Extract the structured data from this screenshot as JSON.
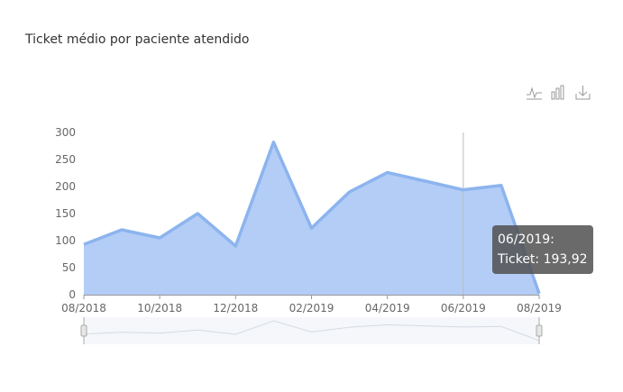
{
  "title": "Ticket médio por paciente atendido",
  "toolbox": {
    "icons": [
      "line-chart-icon",
      "bar-chart-icon",
      "download-icon"
    ]
  },
  "colors": {
    "area": "#b3cdf7",
    "line": "#8cb4ee",
    "axis": "#999999",
    "grid_text": "#666666"
  },
  "tooltip": {
    "label": "06/2019:",
    "value_line": "Ticket: 193,92"
  },
  "chart_data": {
    "type": "area",
    "title": "Ticket médio por paciente atendido",
    "x": [
      "08/2018",
      "09/2018",
      "10/2018",
      "11/2018",
      "12/2018",
      "01/2019",
      "02/2019",
      "03/2019",
      "04/2019",
      "05/2019",
      "06/2019",
      "07/2019",
      "08/2019"
    ],
    "x_tick_labels": [
      "08/2018",
      "10/2018",
      "12/2018",
      "02/2019",
      "04/2019",
      "06/2019",
      "08/2019"
    ],
    "series": [
      {
        "values": [
          93,
          120,
          105,
          150,
          90,
          282,
          123,
          190,
          226,
          210,
          193.92,
          202,
          2
        ]
      }
    ],
    "y_ticks": [
      0,
      50,
      100,
      150,
      200,
      250,
      300
    ],
    "ylim": [
      0,
      300
    ],
    "grid": false,
    "data_zoom": true,
    "highlight": {
      "category": "06/2019"
    }
  }
}
